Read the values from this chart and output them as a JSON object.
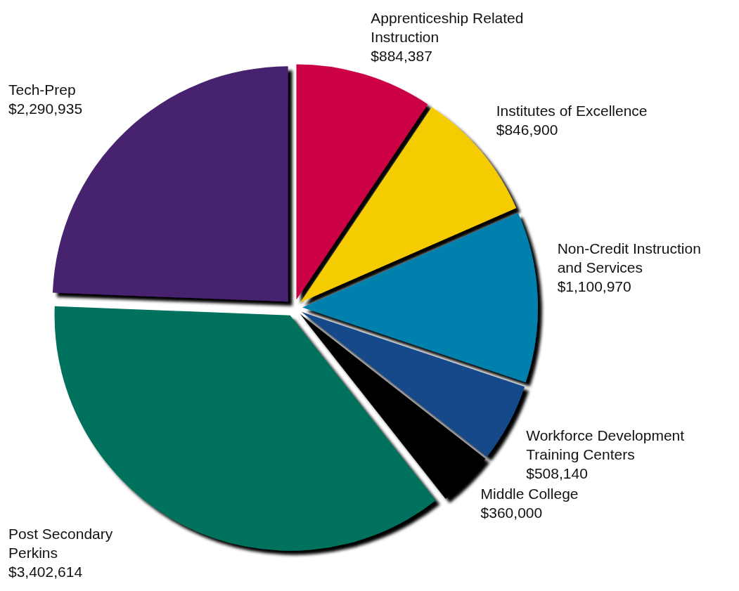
{
  "chart_data": {
    "type": "pie",
    "categories": [
      "Apprenticeship Related Instruction",
      "Institutes of Excellence",
      "Non-Credit Instruction and Services",
      "Workforce Development Training Centers",
      "Middle College",
      "Post Secondary Perkins",
      "Tech-Prep"
    ],
    "values": [
      884387,
      846900,
      1100970,
      508140,
      360000,
      3402614,
      2290935
    ],
    "value_labels": [
      "$884,387",
      "$846,900",
      "$1,100,970",
      "$508,140",
      "$360,000",
      "$3,402,614",
      "$2,290,935"
    ],
    "colors": [
      "#cc0044",
      "#f5cc00",
      "#0080ad",
      "#154a8a",
      "#000000",
      "#00715c",
      "#46206e"
    ],
    "legend": false
  }
}
